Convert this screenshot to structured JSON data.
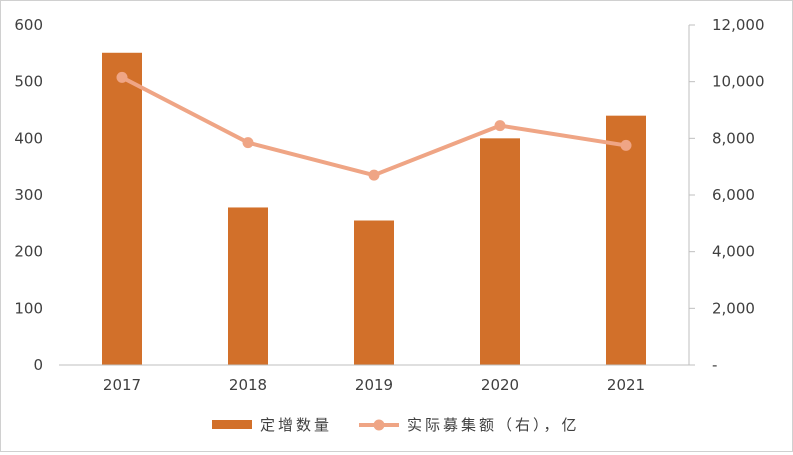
{
  "chart_data": {
    "type": "bar",
    "categories": [
      "2017",
      "2018",
      "2019",
      "2020",
      "2021"
    ],
    "series": [
      {
        "name": "定增数量",
        "type": "bar",
        "axis": "left",
        "color": "#D2702A",
        "values": [
          551,
          278,
          255,
          400,
          440
        ]
      },
      {
        "name": "实际募集额（右），亿",
        "type": "line",
        "axis": "right",
        "color": "#EFA585",
        "values": [
          10150,
          7850,
          6700,
          8450,
          7750
        ]
      }
    ],
    "y_left": {
      "min": 0,
      "max": 600,
      "ticks": [
        "0",
        "100",
        "200",
        "300",
        "400",
        "500",
        "600"
      ]
    },
    "y_right": {
      "min": 0,
      "max": 12000,
      "ticks": [
        "-",
        "2,000",
        "4,000",
        "6,000",
        "8,000",
        "10,000",
        "12,000"
      ]
    },
    "legend_position": "bottom",
    "grid": false
  }
}
